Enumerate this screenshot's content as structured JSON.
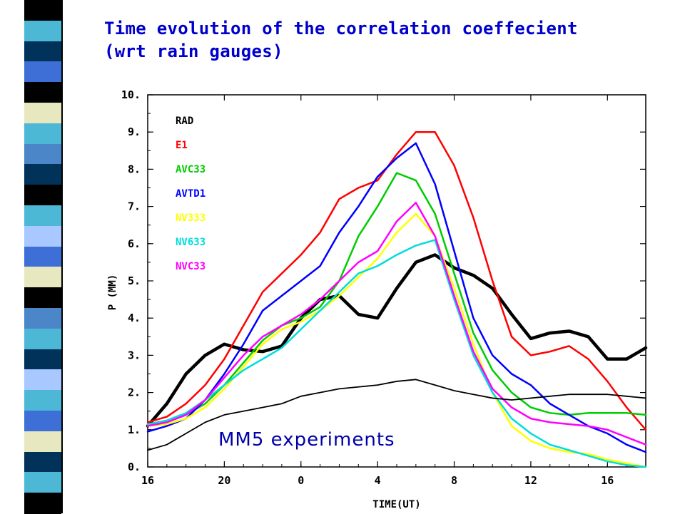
{
  "slide": {
    "title_line1": "Time evolution of the correlation coeffecient",
    "title_line2": "(wrt rain gauges)",
    "accent_color": "#0000cc"
  },
  "decor": {
    "left_bar_colors": [
      "#000000",
      "#4db8d6",
      "#00325a",
      "#3d6fd6",
      "#000000",
      "#e8e8c0",
      "#4db8d6",
      "#4a86c8",
      "#00325a",
      "#000000",
      "#4db8d6",
      "#a8c8ff",
      "#3d6fd6",
      "#e8e8c0",
      "#000000",
      "#4a86c8",
      "#4db8d6",
      "#00325a",
      "#a8c8ff",
      "#4db8d6",
      "#3d6fd6",
      "#e8e8c0",
      "#00325a",
      "#4db8d6",
      "#000000"
    ]
  },
  "chart_data": {
    "type": "line",
    "title": "",
    "xlabel": "TIME(UT)",
    "ylabel": "P (MM)",
    "x_tick_labels": [
      "16",
      "20",
      "0",
      "4",
      "8",
      "12",
      "16"
    ],
    "y_tick_labels": [
      "0.",
      "1.",
      "2.",
      "3.",
      "4.",
      "5.",
      "6.",
      "7.",
      "8.",
      "9.",
      "10."
    ],
    "ylim": [
      0,
      10
    ],
    "x_unit": "hours elapsed from 16 UT",
    "xlim": [
      0,
      26
    ],
    "grid": false,
    "legend_position": "top-left",
    "annotation": "MM5 experiments",
    "x": [
      0,
      1,
      2,
      3,
      4,
      5,
      6,
      7,
      8,
      9,
      10,
      11,
      12,
      13,
      14,
      15,
      16,
      17,
      18,
      19,
      20,
      21,
      22,
      23,
      24,
      25,
      26
    ],
    "series": [
      {
        "name": "RAD",
        "color": "#000000",
        "width": 4.5,
        "values": [
          1.1,
          1.7,
          2.5,
          3.0,
          3.3,
          3.15,
          3.1,
          3.25,
          4.0,
          4.5,
          4.6,
          4.1,
          4.0,
          4.8,
          5.5,
          5.7,
          5.35,
          5.15,
          4.8,
          4.1,
          3.45,
          3.6,
          3.65,
          3.5,
          2.9,
          2.9,
          3.2
        ]
      },
      {
        "name": "E1",
        "color": "#ff0000",
        "width": 2.5,
        "values": [
          1.2,
          1.35,
          1.7,
          2.2,
          2.9,
          3.8,
          4.7,
          5.2,
          5.7,
          6.3,
          7.2,
          7.5,
          7.7,
          8.4,
          9.0,
          9.0,
          8.1,
          6.7,
          5.0,
          3.5,
          3.0,
          3.1,
          3.25,
          2.9,
          2.3,
          1.6,
          1.0
        ]
      },
      {
        "name": "AVC33",
        "color": "#00cc00",
        "width": 2.5,
        "values": [
          1.15,
          1.2,
          1.4,
          1.7,
          2.2,
          2.8,
          3.4,
          3.8,
          4.0,
          4.3,
          5.0,
          6.2,
          7.0,
          7.9,
          7.7,
          6.8,
          5.2,
          3.6,
          2.6,
          2.0,
          1.6,
          1.45,
          1.4,
          1.45,
          1.45,
          1.45,
          1.4
        ]
      },
      {
        "name": "AVTD1",
        "color": "#0000ff",
        "width": 2.5,
        "values": [
          0.95,
          1.1,
          1.3,
          1.8,
          2.5,
          3.3,
          4.2,
          4.6,
          5.0,
          5.4,
          6.3,
          7.0,
          7.8,
          8.3,
          8.7,
          7.6,
          5.8,
          4.0,
          3.0,
          2.5,
          2.2,
          1.7,
          1.4,
          1.1,
          0.9,
          0.6,
          0.4
        ]
      },
      {
        "name": "NV333",
        "color": "#ffff00",
        "width": 2.5,
        "values": [
          1.1,
          1.15,
          1.3,
          1.6,
          2.1,
          2.7,
          3.3,
          3.7,
          3.9,
          4.2,
          4.6,
          5.1,
          5.6,
          6.3,
          6.8,
          6.2,
          4.8,
          3.3,
          2.0,
          1.1,
          0.7,
          0.5,
          0.4,
          0.35,
          0.2,
          0.1,
          0.0
        ]
      },
      {
        "name": "NV633",
        "color": "#00dddd",
        "width": 2.5,
        "values": [
          1.15,
          1.25,
          1.45,
          1.8,
          2.2,
          2.6,
          2.9,
          3.2,
          3.7,
          4.2,
          4.7,
          5.2,
          5.4,
          5.7,
          5.95,
          6.1,
          4.5,
          3.0,
          2.0,
          1.3,
          0.9,
          0.6,
          0.45,
          0.3,
          0.15,
          0.05,
          0.0
        ]
      },
      {
        "name": "NVC33",
        "color": "#ff00ff",
        "width": 2.5,
        "values": [
          1.1,
          1.2,
          1.4,
          1.8,
          2.4,
          3.0,
          3.5,
          3.8,
          4.1,
          4.5,
          5.0,
          5.5,
          5.8,
          6.6,
          7.1,
          6.2,
          4.6,
          3.1,
          2.1,
          1.6,
          1.3,
          1.2,
          1.15,
          1.1,
          1.0,
          0.8,
          0.6
        ]
      },
      {
        "name": "",
        "color": "#000000",
        "width": 1.8,
        "values": [
          0.45,
          0.6,
          0.9,
          1.2,
          1.4,
          1.5,
          1.6,
          1.7,
          1.9,
          2.0,
          2.1,
          2.15,
          2.2,
          2.3,
          2.35,
          2.2,
          2.05,
          1.95,
          1.85,
          1.8,
          1.85,
          1.9,
          1.95,
          1.95,
          1.95,
          1.9,
          1.85
        ]
      }
    ]
  }
}
